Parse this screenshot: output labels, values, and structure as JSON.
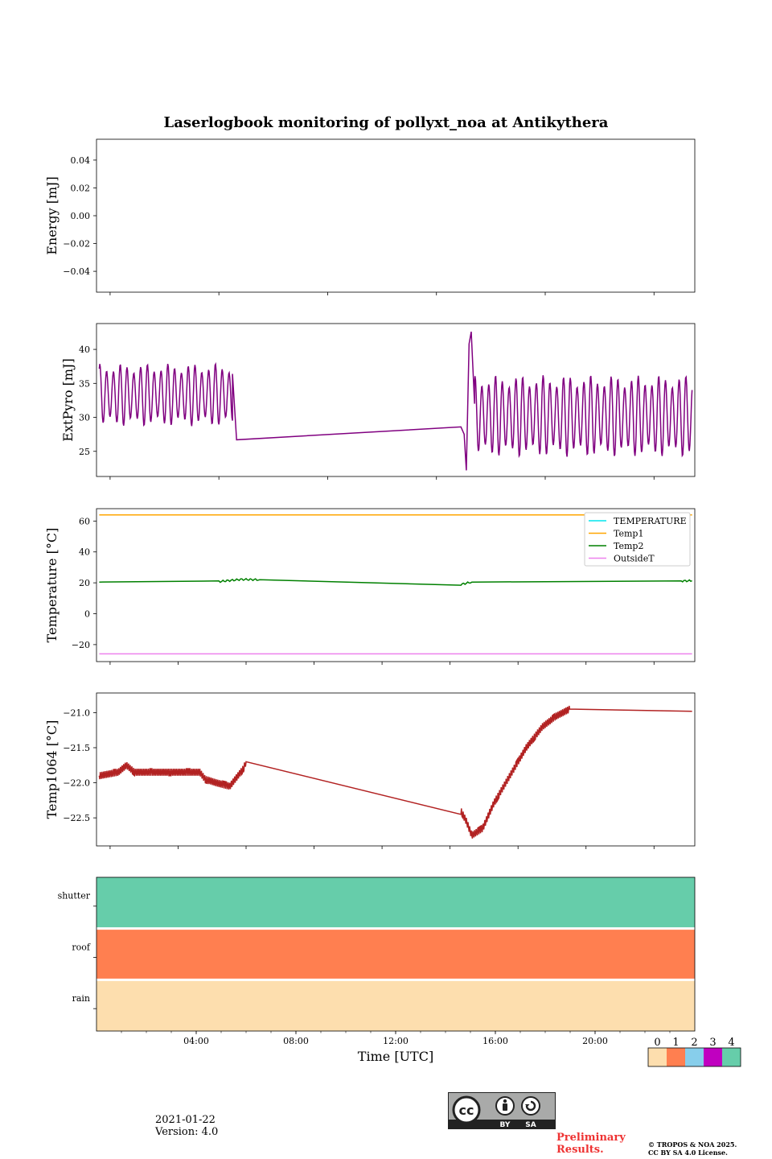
{
  "chart_data": [
    {
      "type": "line",
      "title": "Laserlogbook monitoring of pollyxt_noa at Antikythera",
      "ylabel": "Energy [mJ]",
      "ylim": [
        -0.055,
        0.055
      ],
      "yticks": [
        "0.04",
        "0.02",
        "0.00",
        "−0.02",
        "−0.04"
      ],
      "yticks_values": [
        0.04,
        0.02,
        0.0,
        -0.02,
        -0.04
      ],
      "series": []
    },
    {
      "type": "line",
      "ylabel": "ExtPyro [mJ]",
      "ylim": [
        21.3,
        43.8
      ],
      "yticks": [
        "40",
        "35",
        "30",
        "25"
      ],
      "yticks_values": [
        40,
        35,
        30,
        25
      ],
      "series": [
        {
          "color": "#800080",
          "segments": [
            {
              "x_start": 1.1,
              "x_end": 6.0,
              "mean": 33.3,
              "amp": 4.6,
              "period": 0.25,
              "phase": 1.0
            },
            {
              "x_start": 14.9,
              "x_end": 22.9,
              "mean": 30.2,
              "amp": 6.0,
              "period": 0.25,
              "phase": 1.0
            }
          ],
          "points": [
            [
              6.0,
              36.4
            ],
            [
              6.15,
              26.7
            ],
            [
              14.4,
              28.6
            ],
            [
              14.52,
              27.5
            ],
            [
              14.6,
              22.2
            ],
            [
              14.7,
              40.8
            ],
            [
              14.78,
              42.6
            ],
            [
              14.9,
              32.0
            ]
          ]
        }
      ]
    },
    {
      "type": "line",
      "ylabel": "Temperature [°C]",
      "ylim": [
        -31,
        68
      ],
      "yticks": [
        "60",
        "40",
        "20",
        "0",
        "−20"
      ],
      "yticks_values": [
        60,
        40,
        20,
        0,
        -20
      ],
      "legend": "top-right",
      "series": [
        {
          "name": "TEMPERATURE",
          "color": "#00e5ee",
          "points": []
        },
        {
          "name": "Temp1",
          "color": "#ffa500",
          "points": [
            [
              1.1,
              64
            ],
            [
              22.9,
              64
            ]
          ]
        },
        {
          "name": "Temp2",
          "color": "#008000",
          "points": [
            [
              1.1,
              20.5
            ],
            [
              5.5,
              20.8
            ],
            [
              6.3,
              22.2
            ],
            [
              7.0,
              22.0
            ],
            [
              14.4,
              19.0
            ],
            [
              14.8,
              20.5
            ],
            [
              22.5,
              21.2
            ],
            [
              22.9,
              21.3
            ]
          ]
        },
        {
          "name": "OutsideT",
          "color": "#ee82ee",
          "points": [
            [
              1.1,
              -26
            ],
            [
              22.9,
              -26
            ]
          ]
        }
      ]
    },
    {
      "type": "line",
      "ylabel": "Temp1064 [°C]",
      "ylim": [
        -22.9,
        -20.72
      ],
      "yticks": [
        "−21.0",
        "−21.5",
        "−22.0",
        "−22.5"
      ],
      "yticks_values": [
        -21.0,
        -21.5,
        -22.0,
        -22.5
      ],
      "series": [
        {
          "color": "#b22222",
          "points": [
            [
              1.1,
              -21.9
            ],
            [
              1.8,
              -21.85
            ],
            [
              2.1,
              -21.75
            ],
            [
              2.4,
              -21.85
            ],
            [
              4.8,
              -21.85
            ],
            [
              5.0,
              -21.95
            ],
            [
              5.4,
              -22.0
            ],
            [
              5.9,
              -22.05
            ],
            [
              6.4,
              -21.8
            ],
            [
              6.5,
              -21.7
            ],
            [
              14.4,
              -22.4
            ],
            [
              14.6,
              -22.55
            ],
            [
              14.8,
              -22.75
            ],
            [
              15.2,
              -22.65
            ],
            [
              15.6,
              -22.3
            ],
            [
              16.2,
              -21.9
            ],
            [
              16.8,
              -21.5
            ],
            [
              17.4,
              -21.2
            ],
            [
              17.9,
              -21.05
            ],
            [
              18.4,
              -20.95
            ],
            [
              22.9,
              -20.98
            ]
          ]
        }
      ]
    },
    {
      "type": "heatmap",
      "rows": [
        "shutter",
        "roof",
        "rain"
      ],
      "row_values": [
        4,
        1,
        0
      ],
      "xlabel": "Time [UTC]",
      "xlim": [
        0,
        24
      ],
      "xticks": [
        "04:00",
        "08:00",
        "12:00",
        "16:00",
        "20:00"
      ],
      "xticks_values": [
        4,
        8,
        12,
        16,
        20
      ],
      "colorbar": {
        "labels": [
          "0",
          "1",
          "2",
          "3",
          "4"
        ],
        "colors": [
          "#fddeae",
          "#ff7f50",
          "#87ceeb",
          "#c000c0",
          "#66cdaa"
        ]
      }
    }
  ],
  "footer": {
    "date": "2021-01-22",
    "version": "Version: 4.0",
    "preliminary_1": "Preliminary",
    "preliminary_2": "Results.",
    "copyright_1": "© TROPOS & NOA 2025.",
    "copyright_2": "CC BY SA 4.0 License.",
    "cc_by": "BY",
    "cc_sa": "SA",
    "cc_symbol": "cc"
  }
}
